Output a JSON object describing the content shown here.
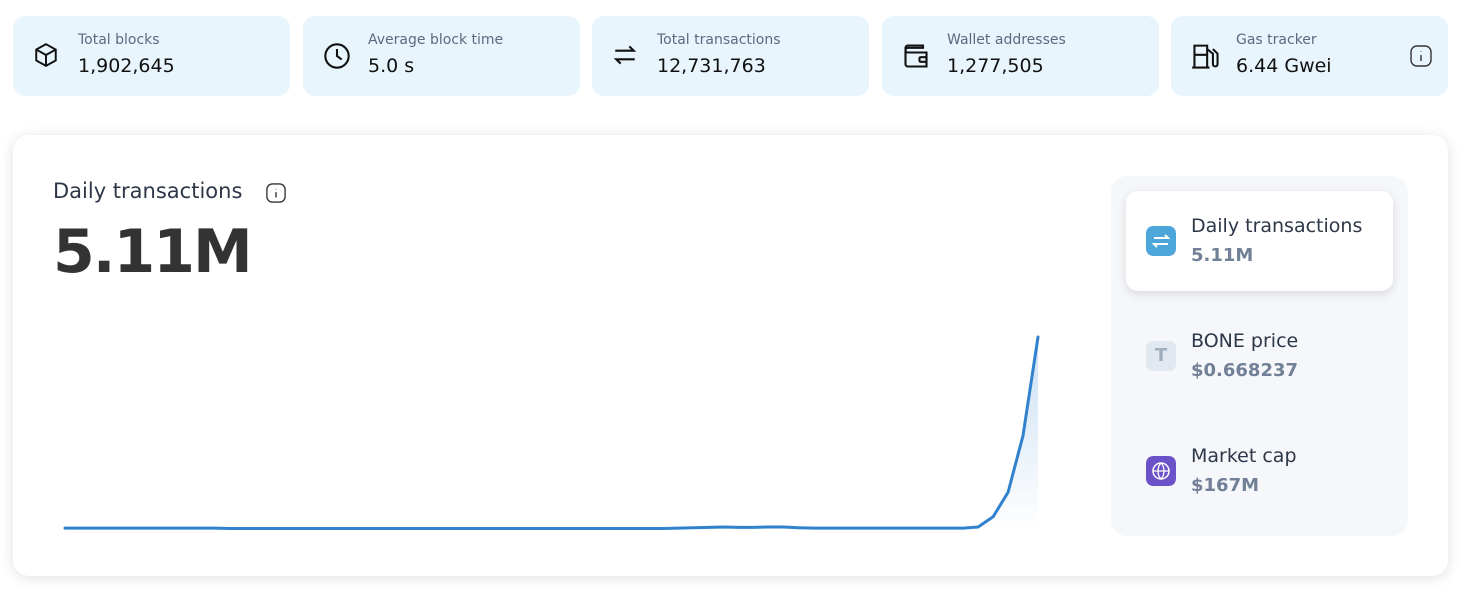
{
  "stats": [
    {
      "label": "Total blocks",
      "value": "1,902,645"
    },
    {
      "label": "Average block time",
      "value": "5.0 s"
    },
    {
      "label": "Total transactions",
      "value": "12,731,763"
    },
    {
      "label": "Wallet addresses",
      "value": "1,277,505"
    },
    {
      "label": "Gas tracker",
      "value": "6.44 Gwei"
    }
  ],
  "chart": {
    "type": "line",
    "title": "Daily transactions",
    "value": "5.11M",
    "color": "#3182ce",
    "values": [
      0.05,
      0.05,
      0.05,
      0.05,
      0.05,
      0.05,
      0.05,
      0.05,
      0.05,
      0.05,
      0.05,
      0.04,
      0.04,
      0.04,
      0.04,
      0.04,
      0.04,
      0.04,
      0.04,
      0.04,
      0.04,
      0.04,
      0.04,
      0.04,
      0.04,
      0.04,
      0.04,
      0.04,
      0.04,
      0.04,
      0.04,
      0.04,
      0.04,
      0.04,
      0.04,
      0.04,
      0.04,
      0.04,
      0.04,
      0.04,
      0.04,
      0.05,
      0.06,
      0.07,
      0.08,
      0.07,
      0.07,
      0.08,
      0.08,
      0.06,
      0.05,
      0.05,
      0.05,
      0.05,
      0.05,
      0.05,
      0.05,
      0.05,
      0.05,
      0.05,
      0.05,
      0.08,
      0.35,
      1.0,
      2.5,
      5.11
    ]
  },
  "sidebar": [
    {
      "label": "Daily transactions",
      "value": "5.11M"
    },
    {
      "label": "BONE price",
      "value": "$0.668237",
      "icon": "T"
    },
    {
      "label": "Market cap",
      "value": "$167M"
    }
  ]
}
